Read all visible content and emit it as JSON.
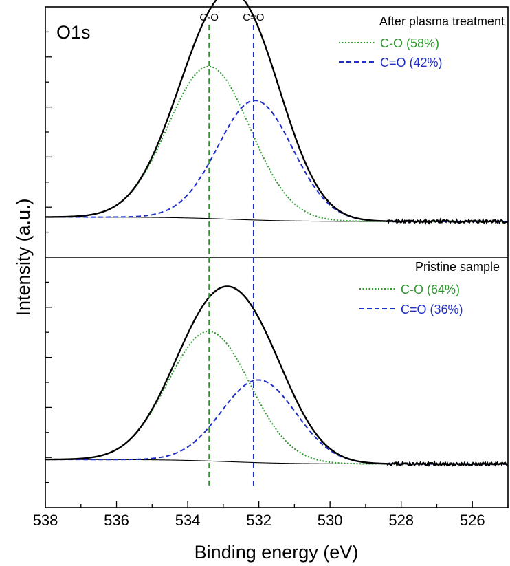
{
  "chart_data": {
    "type": "line",
    "xlabel": "Binding energy (eV)",
    "ylabel": "Intensity (a.u.)",
    "xlim": [
      538,
      525
    ],
    "x_reversed": true,
    "xticks": [
      538,
      536,
      534,
      532,
      530,
      528,
      526
    ],
    "grid": false,
    "colors": {
      "total": "#000000",
      "co": "#2e9a2e",
      "c_eq_o": "#1f2fc8",
      "baseline": "#000000"
    },
    "reference_lines": [
      {
        "label": "C-O",
        "x": 533.4,
        "color": "#2e9a2e",
        "style": "dashed"
      },
      {
        "label": "C=O",
        "x": 532.15,
        "color": "#1f2fc8",
        "style": "dashed"
      }
    ],
    "panels": [
      {
        "position": "top",
        "label": "O1s",
        "legend_title": "After plasma treatment",
        "legend_placement": "top-right",
        "ylim": [
          0,
          1.12
        ],
        "baseline_level": 0.18,
        "series": [
          {
            "name": "C-O (58%)",
            "component": "co",
            "center": 533.4,
            "sigma": 1.15,
            "amplitude": 0.68,
            "line": "dotted"
          },
          {
            "name": "C=O (42%)",
            "component": "c_eq_o",
            "center": 532.1,
            "sigma": 1.05,
            "amplitude": 0.535,
            "line": "dashed"
          },
          {
            "name": "",
            "component": "total",
            "center": null,
            "sigma": null,
            "amplitude": 1.005,
            "line": "solid"
          }
        ]
      },
      {
        "position": "bottom",
        "label": "",
        "legend_title": "Pristine sample",
        "legend_placement": "top-right",
        "ylim": [
          0,
          1.12
        ],
        "baseline_level": 0.215,
        "series": [
          {
            "name": "C-O (64%)",
            "component": "co",
            "center": 533.4,
            "sigma": 1.15,
            "amplitude": 0.58,
            "line": "dotted"
          },
          {
            "name": "C=O (36%)",
            "component": "c_eq_o",
            "center": 532.0,
            "sigma": 1.05,
            "amplitude": 0.37,
            "line": "dashed"
          },
          {
            "name": "",
            "component": "total",
            "center": null,
            "sigma": null,
            "amplitude": 0.79,
            "line": "solid"
          }
        ]
      }
    ]
  }
}
